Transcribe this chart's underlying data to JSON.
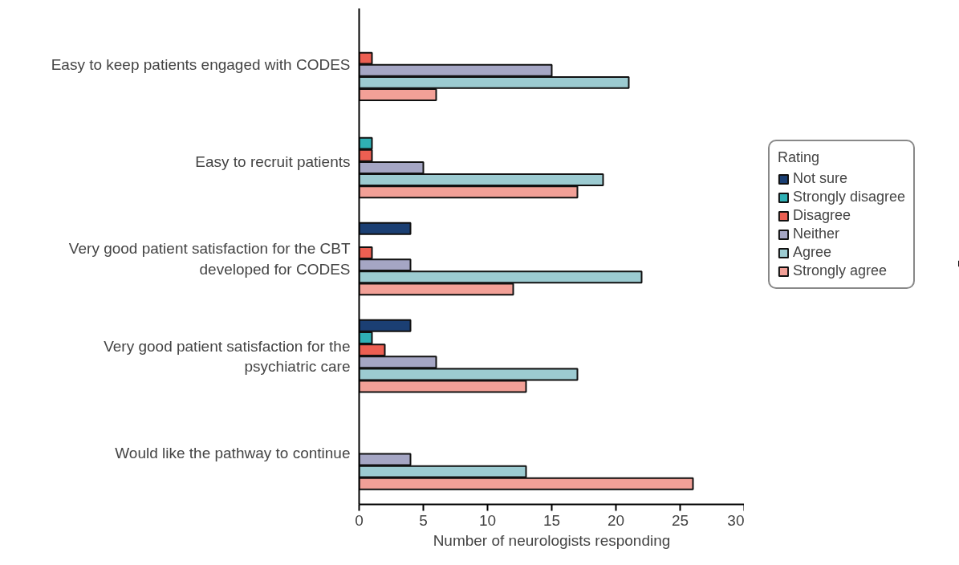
{
  "chart_data": {
    "type": "bar",
    "orientation": "horizontal",
    "xlabel": "Number of neurologists responding",
    "legend_title": "Rating",
    "legend": "right",
    "categories": [
      "Easy to keep patients engaged with CODES",
      "Easy to recruit patients",
      "Very good patient satisfaction for the CBT developed for CODES",
      "Very good patient satisfaction for the psychiatric care",
      "Would like the pathway to continue"
    ],
    "series": [
      {
        "name": "Not sure",
        "color": "#1b3f73",
        "values": [
          null,
          null,
          4,
          4,
          null
        ]
      },
      {
        "name": "Strongly disagree",
        "color": "#2fb0b5",
        "values": [
          null,
          1,
          null,
          1,
          null
        ]
      },
      {
        "name": "Disagree",
        "color": "#ec5f52",
        "values": [
          1,
          1,
          1,
          2,
          null
        ]
      },
      {
        "name": "Neither",
        "color": "#a5a6c4",
        "values": [
          15,
          5,
          4,
          6,
          4
        ]
      },
      {
        "name": "Agree",
        "color": "#9ccbd1",
        "values": [
          21,
          19,
          22,
          17,
          13
        ]
      },
      {
        "name": "Strongly agree",
        "color": "#f2a097",
        "values": [
          6,
          17,
          12,
          13,
          26
        ]
      }
    ],
    "xlim": [
      0,
      30
    ],
    "xticks": [
      0,
      5,
      10,
      15,
      20,
      25,
      30
    ],
    "grid": false
  }
}
